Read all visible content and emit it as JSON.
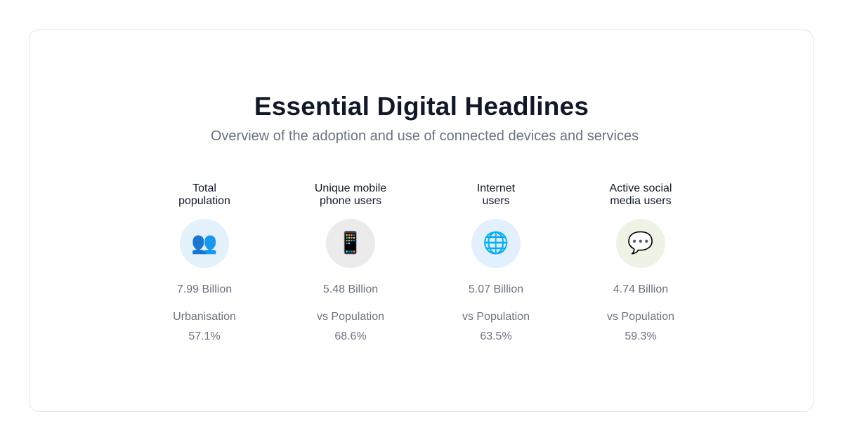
{
  "header": {
    "title": "Essential Digital Headlines",
    "subtitle": "Overview of the adoption and use of connected devices and services"
  },
  "stats": [
    {
      "label_line1": "Total",
      "label_line2": "population",
      "icon": "people-icon",
      "glyph": "👥",
      "icon_bg": "#e3f1fb",
      "value": "7.99 Billion",
      "sub_label": "Urbanisation",
      "percent": "57.1%"
    },
    {
      "label_line1": "Unique mobile",
      "label_line2": "phone users",
      "icon": "mobile-phone-icon",
      "glyph": "📱",
      "icon_bg": "#ebebeb",
      "value": "5.48 Billion",
      "sub_label": "vs Population",
      "percent": "68.6%"
    },
    {
      "label_line1": "Internet",
      "label_line2": "users",
      "icon": "globe-icon",
      "glyph": "🌐",
      "icon_bg": "#e2effc",
      "value": "5.07 Billion",
      "sub_label": "vs Population",
      "percent": "63.5%"
    },
    {
      "label_line1": "Active social",
      "label_line2": "media users",
      "icon": "speech-bubble-icon",
      "glyph": "💬",
      "icon_bg": "#edf4e6",
      "value": "4.74 Billion",
      "sub_label": "vs Population",
      "percent": "59.3%"
    }
  ]
}
